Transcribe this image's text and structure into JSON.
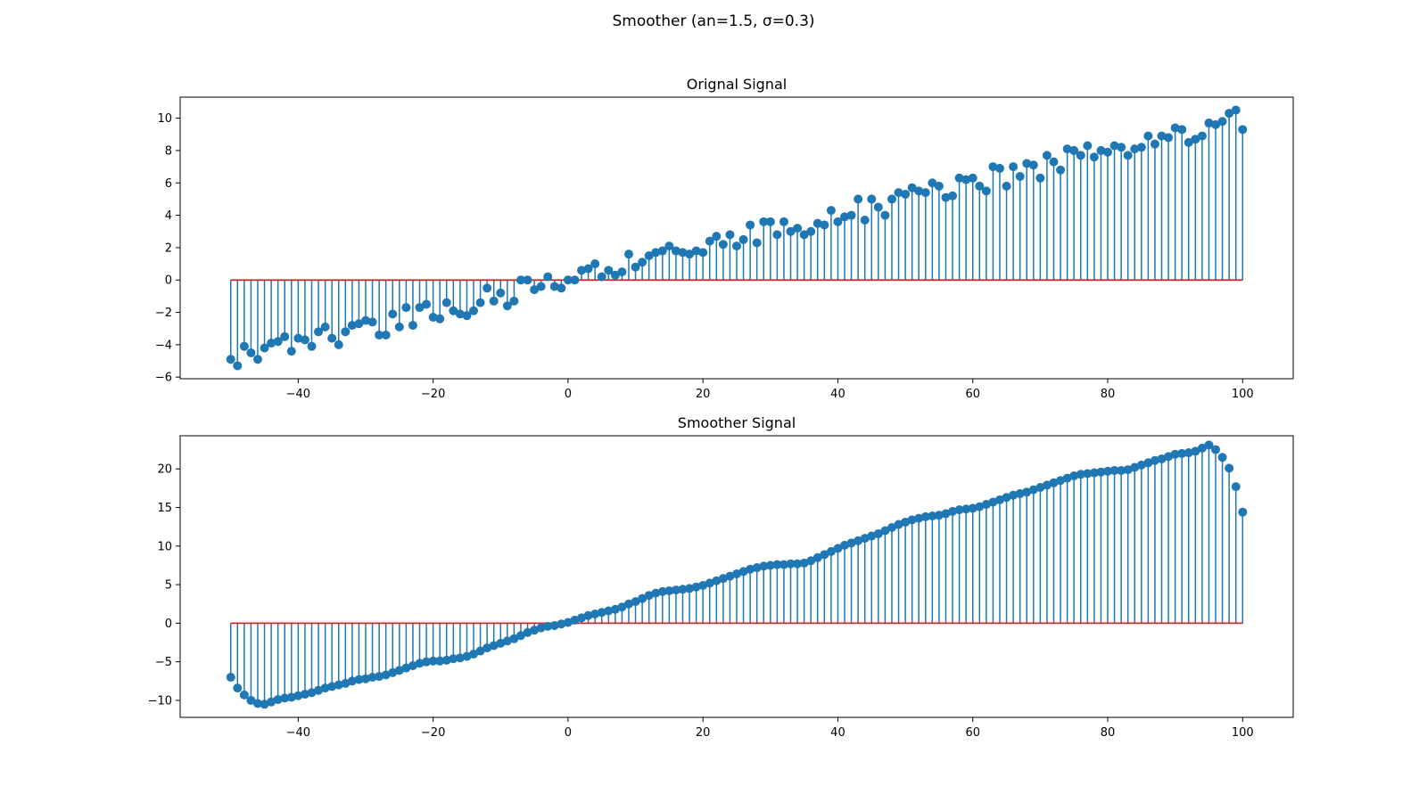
{
  "figure": {
    "title": "Smoother (an=1.5, σ=0.3)",
    "stem_color": "#1f77b4",
    "baseline_color": "#d62728"
  },
  "chart_data": [
    {
      "type": "stem",
      "title": "Orignal Signal",
      "xlim": [
        -57.5,
        107.5
      ],
      "ylim": [
        -6.1,
        11.3
      ],
      "xticks": [
        -40,
        -20,
        0,
        20,
        40,
        60,
        80,
        100
      ],
      "yticks": [
        -6,
        -4,
        -2,
        0,
        2,
        4,
        6,
        8,
        10
      ],
      "x_start": -50,
      "x_step": 1,
      "values": [
        -4.9,
        -5.3,
        -4.1,
        -4.5,
        -4.9,
        -4.2,
        -3.9,
        -3.8,
        -3.5,
        -4.4,
        -3.6,
        -3.7,
        -4.1,
        -3.2,
        -2.9,
        -3.6,
        -4.0,
        -3.2,
        -2.8,
        -2.7,
        -2.5,
        -2.6,
        -3.4,
        -3.4,
        -2.1,
        -2.9,
        -1.7,
        -2.8,
        -1.7,
        -1.5,
        -2.3,
        -2.4,
        -1.4,
        -1.9,
        -2.1,
        -2.2,
        -1.9,
        -1.4,
        -0.5,
        -1.3,
        -0.8,
        -1.6,
        -1.3,
        0.0,
        0.0,
        -0.6,
        -0.4,
        0.2,
        -0.4,
        -0.5,
        0.0,
        0.0,
        0.6,
        0.7,
        1.0,
        0.2,
        0.6,
        0.3,
        0.5,
        1.6,
        0.8,
        1.1,
        1.5,
        1.7,
        1.8,
        2.1,
        1.8,
        1.7,
        1.6,
        1.8,
        1.7,
        2.4,
        2.7,
        2.2,
        2.8,
        2.1,
        2.5,
        3.4,
        2.3,
        3.6,
        3.6,
        2.8,
        3.6,
        3.0,
        3.2,
        2.8,
        3.0,
        3.5,
        3.4,
        4.3,
        3.6,
        3.9,
        4.0,
        5.0,
        3.7,
        5.0,
        4.5,
        4.0,
        5.0,
        5.4,
        5.3,
        5.7,
        5.5,
        5.4,
        6.0,
        5.8,
        5.1,
        5.2,
        6.3,
        6.2,
        6.3,
        5.8,
        5.5,
        7.0,
        6.9,
        5.8,
        7.0,
        6.4,
        7.2,
        7.1,
        6.3,
        7.7,
        7.3,
        6.8,
        8.1,
        8.0,
        7.7,
        8.3,
        7.6,
        8.0,
        7.9,
        8.3,
        8.2,
        7.7,
        8.1,
        8.2,
        8.9,
        8.4,
        8.9,
        8.8,
        9.4,
        9.3,
        8.5,
        8.7,
        8.9,
        9.7,
        9.6,
        9.8,
        10.3,
        10.5,
        9.3
      ]
    },
    {
      "type": "stem",
      "title": "Smoother Signal",
      "xlim": [
        -57.5,
        107.5
      ],
      "ylim": [
        -12.2,
        24.3
      ],
      "xticks": [
        -40,
        -20,
        0,
        20,
        40,
        60,
        80,
        100
      ],
      "yticks": [
        -10,
        -5,
        0,
        5,
        10,
        15,
        20
      ],
      "x_start": -50,
      "x_step": 1,
      "values": [
        -7.0,
        -8.4,
        -9.3,
        -10.0,
        -10.4,
        -10.5,
        -10.2,
        -9.9,
        -9.7,
        -9.6,
        -9.4,
        -9.2,
        -9.0,
        -8.7,
        -8.4,
        -8.2,
        -8.0,
        -7.8,
        -7.5,
        -7.3,
        -7.2,
        -7.0,
        -6.9,
        -6.7,
        -6.4,
        -6.1,
        -5.8,
        -5.5,
        -5.2,
        -5.0,
        -4.9,
        -4.9,
        -4.8,
        -4.6,
        -4.5,
        -4.3,
        -4.0,
        -3.6,
        -3.2,
        -2.9,
        -2.6,
        -2.3,
        -2.0,
        -1.6,
        -1.2,
        -0.9,
        -0.6,
        -0.4,
        -0.3,
        -0.1,
        0.1,
        0.4,
        0.7,
        1.0,
        1.2,
        1.4,
        1.6,
        1.8,
        2.1,
        2.5,
        2.8,
        3.2,
        3.6,
        3.9,
        4.1,
        4.2,
        4.3,
        4.4,
        4.5,
        4.7,
        4.9,
        5.2,
        5.5,
        5.8,
        6.1,
        6.4,
        6.7,
        7.0,
        7.2,
        7.4,
        7.5,
        7.6,
        7.6,
        7.7,
        7.7,
        7.8,
        8.1,
        8.5,
        8.9,
        9.3,
        9.7,
        10.1,
        10.4,
        10.7,
        11.0,
        11.3,
        11.6,
        12.0,
        12.4,
        12.8,
        13.1,
        13.4,
        13.6,
        13.8,
        13.9,
        14.0,
        14.2,
        14.5,
        14.7,
        14.8,
        14.9,
        15.1,
        15.4,
        15.7,
        16.0,
        16.3,
        16.6,
        16.8,
        17.0,
        17.3,
        17.6,
        17.9,
        18.2,
        18.5,
        18.8,
        19.1,
        19.3,
        19.4,
        19.5,
        19.6,
        19.7,
        19.8,
        19.8,
        19.9,
        20.2,
        20.5,
        20.8,
        21.1,
        21.3,
        21.6,
        21.9,
        22.0,
        22.1,
        22.3,
        22.7,
        23.1,
        22.5,
        21.5,
        20.1,
        17.7,
        14.4
      ]
    }
  ]
}
